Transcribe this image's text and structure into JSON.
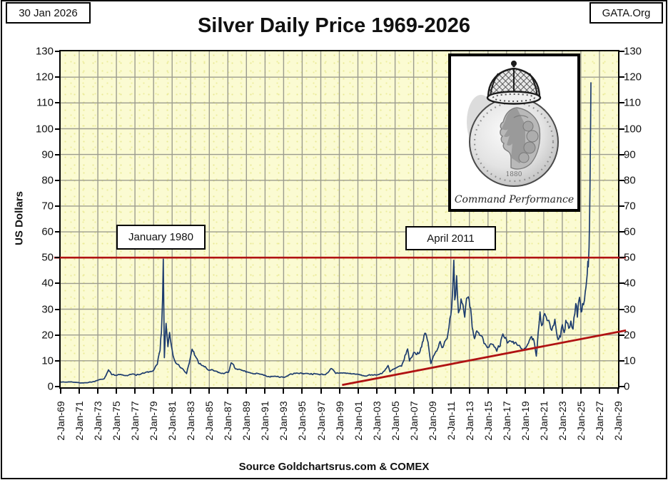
{
  "header": {
    "date_box": "30 Jan 2026",
    "org_box": "GATA.Org",
    "title": "Silver Daily Price 1969-2026"
  },
  "footer": {
    "source": "Source Goldchartsrus.com & COMEX"
  },
  "annotations": [
    {
      "text": "January 1980"
    },
    {
      "text": "April 2011"
    }
  ],
  "badge": {
    "text": "Command Performance",
    "coin_year": "1880"
  },
  "colors": {
    "price_line": "#1d3c6e",
    "overlay_red": "#b01212",
    "grid": "#9c9c8e",
    "plot_background": "#fbfbd2",
    "axis": "#000000"
  },
  "chart_data": {
    "type": "line",
    "title": "Silver Daily Price 1969-2026",
    "ylabel": "US Dollars",
    "ylim": [
      0,
      130
    ],
    "x_range_years": [
      1969,
      2029
    ],
    "y_ticks": [
      0,
      10,
      20,
      30,
      40,
      50,
      60,
      70,
      80,
      90,
      100,
      110,
      120,
      130
    ],
    "x_tick_labels": [
      "2-Jan-69",
      "2-Jan-71",
      "2-Jan-73",
      "2-Jan-75",
      "2-Jan-77",
      "2-Jan-79",
      "2-Jan-81",
      "2-Jan-83",
      "2-Jan-85",
      "2-Jan-87",
      "2-Jan-89",
      "2-Jan-91",
      "2-Jan-93",
      "2-Jan-95",
      "2-Jan-97",
      "2-Jan-99",
      "2-Jan-01",
      "2-Jan-03",
      "2-Jan-05",
      "2-Jan-07",
      "2-Jan-09",
      "2-Jan-11",
      "2-Jan-13",
      "2-Jan-15",
      "2-Jan-17",
      "2-Jan-19",
      "2-Jan-21",
      "2-Jan-23",
      "2-Jan-25",
      "2-Jan-27",
      "2-Jan-29"
    ],
    "grid": true,
    "legend": false,
    "noise_pct": 0.055,
    "series": [
      {
        "name": "Silver daily price (USD)",
        "color": "#1d3c6e",
        "points": [
          [
            1969.0,
            1.8
          ],
          [
            1969.5,
            1.72
          ],
          [
            1970.1,
            1.85
          ],
          [
            1970.7,
            1.62
          ],
          [
            1971.3,
            1.4
          ],
          [
            1971.9,
            1.5
          ],
          [
            1972.5,
            1.9
          ],
          [
            1973.1,
            2.6
          ],
          [
            1973.7,
            3.1
          ],
          [
            1974.15,
            6.5
          ],
          [
            1974.5,
            4.6
          ],
          [
            1975.0,
            4.3
          ],
          [
            1975.6,
            4.5
          ],
          [
            1976.2,
            4.2
          ],
          [
            1976.8,
            4.9
          ],
          [
            1977.4,
            4.6
          ],
          [
            1978.0,
            5.2
          ],
          [
            1978.6,
            5.7
          ],
          [
            1979.0,
            6.3
          ],
          [
            1979.4,
            8.6
          ],
          [
            1979.7,
            14.0
          ],
          [
            1979.85,
            21.0
          ],
          [
            1979.97,
            34.0
          ],
          [
            1980.05,
            49.4
          ],
          [
            1980.16,
            11.2
          ],
          [
            1980.35,
            24.5
          ],
          [
            1980.55,
            15.5
          ],
          [
            1980.72,
            21.0
          ],
          [
            1981.1,
            12.0
          ],
          [
            1981.6,
            8.6
          ],
          [
            1982.1,
            7.0
          ],
          [
            1982.55,
            5.0
          ],
          [
            1982.85,
            9.2
          ],
          [
            1983.15,
            14.5
          ],
          [
            1983.5,
            11.8
          ],
          [
            1983.85,
            9.0
          ],
          [
            1984.3,
            8.1
          ],
          [
            1984.9,
            6.4
          ],
          [
            1985.6,
            6.0
          ],
          [
            1986.3,
            5.1
          ],
          [
            1987.05,
            5.5
          ],
          [
            1987.35,
            9.2
          ],
          [
            1987.8,
            6.9
          ],
          [
            1988.5,
            6.3
          ],
          [
            1989.5,
            5.2
          ],
          [
            1990.5,
            4.8
          ],
          [
            1991.2,
            3.9
          ],
          [
            1992.1,
            4.0
          ],
          [
            1993.1,
            3.6
          ],
          [
            1993.7,
            4.8
          ],
          [
            1994.5,
            5.2
          ],
          [
            1995.5,
            5.1
          ],
          [
            1996.5,
            4.9
          ],
          [
            1997.5,
            4.6
          ],
          [
            1998.1,
            7.0
          ],
          [
            1998.6,
            5.1
          ],
          [
            1999.2,
            5.3
          ],
          [
            2000.0,
            5.1
          ],
          [
            2000.8,
            4.8
          ],
          [
            2001.5,
            4.3
          ],
          [
            2001.95,
            4.1
          ],
          [
            2002.5,
            4.6
          ],
          [
            2003.0,
            4.5
          ],
          [
            2003.6,
            5.1
          ],
          [
            2004.25,
            8.2
          ],
          [
            2004.45,
            5.7
          ],
          [
            2005.0,
            7.0
          ],
          [
            2005.7,
            7.9
          ],
          [
            2006.35,
            14.6
          ],
          [
            2006.55,
            9.9
          ],
          [
            2007.0,
            13.2
          ],
          [
            2007.6,
            12.9
          ],
          [
            2008.2,
            20.7
          ],
          [
            2008.55,
            17.2
          ],
          [
            2008.85,
            8.9
          ],
          [
            2009.3,
            13.0
          ],
          [
            2009.85,
            17.5
          ],
          [
            2010.15,
            15.2
          ],
          [
            2010.6,
            18.6
          ],
          [
            2010.9,
            26.5
          ],
          [
            2011.1,
            31.0
          ],
          [
            2011.32,
            49.0
          ],
          [
            2011.42,
            33.6
          ],
          [
            2011.62,
            43.0
          ],
          [
            2011.82,
            28.6
          ],
          [
            2012.1,
            34.0
          ],
          [
            2012.5,
            26.9
          ],
          [
            2012.8,
            34.4
          ],
          [
            2013.05,
            31.0
          ],
          [
            2013.3,
            23.0
          ],
          [
            2013.55,
            18.6
          ],
          [
            2013.8,
            21.6
          ],
          [
            2014.3,
            19.6
          ],
          [
            2014.85,
            15.6
          ],
          [
            2015.3,
            16.6
          ],
          [
            2015.95,
            13.7
          ],
          [
            2016.3,
            15.6
          ],
          [
            2016.6,
            20.4
          ],
          [
            2017.1,
            16.9
          ],
          [
            2017.6,
            17.2
          ],
          [
            2018.1,
            16.4
          ],
          [
            2018.75,
            14.0
          ],
          [
            2019.1,
            15.2
          ],
          [
            2019.7,
            19.4
          ],
          [
            2019.95,
            17.8
          ],
          [
            2020.2,
            11.8
          ],
          [
            2020.6,
            29.0
          ],
          [
            2020.78,
            23.6
          ],
          [
            2021.1,
            28.3
          ],
          [
            2021.45,
            25.6
          ],
          [
            2021.75,
            22.4
          ],
          [
            2021.98,
            23.4
          ],
          [
            2022.2,
            26.1
          ],
          [
            2022.55,
            18.2
          ],
          [
            2022.8,
            19.2
          ],
          [
            2023.0,
            24.0
          ],
          [
            2023.2,
            20.9
          ],
          [
            2023.38,
            25.7
          ],
          [
            2023.7,
            22.6
          ],
          [
            2023.92,
            25.4
          ],
          [
            2024.15,
            22.3
          ],
          [
            2024.45,
            32.2
          ],
          [
            2024.62,
            26.9
          ],
          [
            2024.85,
            34.6
          ],
          [
            2025.02,
            28.9
          ],
          [
            2025.18,
            32.2
          ],
          [
            2025.38,
            33.4
          ],
          [
            2025.55,
            38.6
          ],
          [
            2025.68,
            43.5
          ],
          [
            2025.75,
            48.6
          ],
          [
            2025.8,
            46.4
          ],
          [
            2025.88,
            54.0
          ],
          [
            2025.93,
            63.0
          ],
          [
            2025.97,
            75.0
          ],
          [
            2026.0,
            86.0
          ],
          [
            2026.05,
            104.0
          ],
          [
            2026.08,
            118.0
          ]
        ]
      }
    ],
    "overlays": [
      {
        "type": "hline",
        "value": 50,
        "color": "#b01212"
      },
      {
        "type": "trendline",
        "from": [
          1999.3,
          0.6
        ],
        "to": [
          2029.85,
          21.8
        ],
        "color": "#b01212"
      }
    ]
  }
}
